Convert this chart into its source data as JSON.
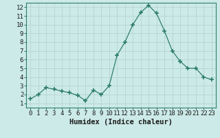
{
  "x": [
    0,
    1,
    2,
    3,
    4,
    5,
    6,
    7,
    8,
    9,
    10,
    11,
    12,
    13,
    14,
    15,
    16,
    17,
    18,
    19,
    20,
    21,
    22,
    23
  ],
  "y": [
    1.5,
    2.0,
    2.8,
    2.6,
    2.4,
    2.2,
    1.9,
    1.3,
    2.5,
    2.0,
    3.0,
    6.5,
    8.0,
    10.0,
    11.4,
    12.2,
    11.3,
    9.3,
    7.0,
    5.8,
    5.0,
    5.0,
    4.0,
    3.7
  ],
  "line_color": "#2e7d6e",
  "marker": "+",
  "marker_size": 4,
  "bg_color": "#cceae7",
  "grid_color": "#b8d8d5",
  "xlabel": "Humidex (Indice chaleur)",
  "xlim": [
    -0.5,
    23.5
  ],
  "ylim": [
    0.5,
    12.5
  ],
  "yticks": [
    1,
    2,
    3,
    4,
    5,
    6,
    7,
    8,
    9,
    10,
    11,
    12
  ],
  "xticks": [
    0,
    1,
    2,
    3,
    4,
    5,
    6,
    7,
    8,
    9,
    10,
    11,
    12,
    13,
    14,
    15,
    16,
    17,
    18,
    19,
    20,
    21,
    22,
    23
  ],
  "xlabel_fontsize": 7.5,
  "tick_fontsize": 6.5,
  "spine_color": "#2e7d6e"
}
